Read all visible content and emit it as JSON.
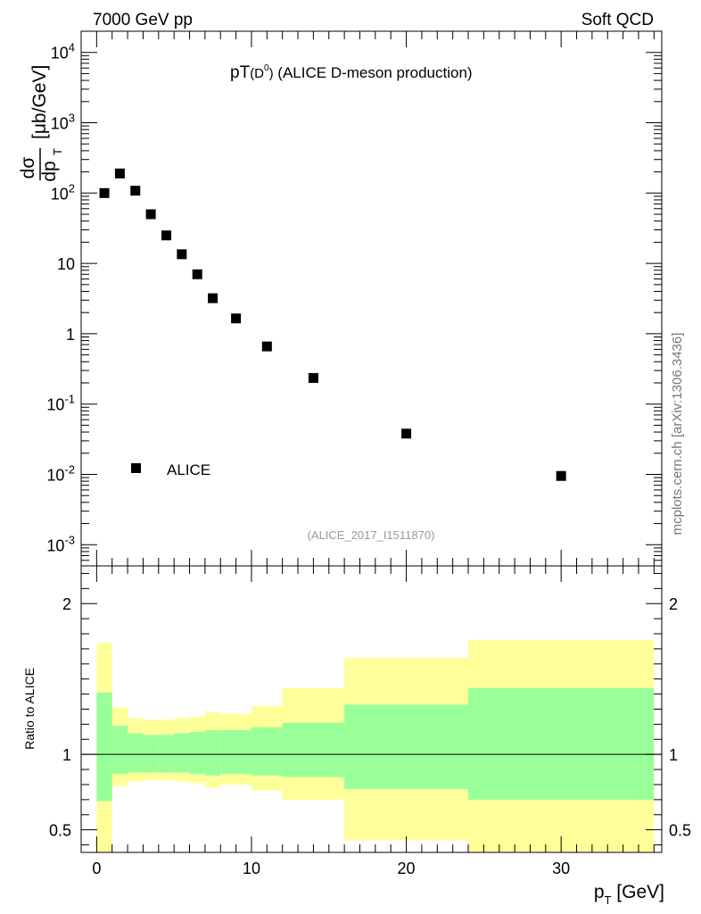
{
  "header": {
    "left": "7000 GeV pp",
    "right": "Soft QCD"
  },
  "plot_title": {
    "main": "pT",
    "sub": "(D",
    "sup": "0",
    "close": ")",
    "desc": " (ALICE D-meson production)"
  },
  "y_label": {
    "num": "dσ",
    "den": "dp",
    "den_sub": "T",
    "unit": "[μb/GeV]"
  },
  "legend": {
    "label": "ALICE"
  },
  "reference": "(ALICE_2017_I1511870)",
  "side_label": "mcplots.cern.ch [arXiv:1306.3436]",
  "ratio_label": "Ratio to ALICE",
  "x_label": {
    "main": "p",
    "sub": "T",
    "unit": " [GeV]"
  },
  "colors": {
    "marker": "#000000",
    "band_outer": "#ffff99",
    "band_inner": "#99ff99"
  },
  "chart_data": [
    {
      "type": "scatter",
      "panel": "main",
      "yscale": "log",
      "xlim": [
        -1,
        36.5
      ],
      "ylim": [
        0.0005,
        20000
      ],
      "y_tick_labels": [
        "10^-3",
        "10^-2",
        "10^-1",
        "1",
        "10",
        "10^2",
        "10^3",
        "10^4"
      ],
      "series": [
        {
          "name": "ALICE",
          "x": [
            0.5,
            1.5,
            2.5,
            3.5,
            4.5,
            5.5,
            6.5,
            7.5,
            9,
            11,
            14,
            20,
            30
          ],
          "y": [
            100,
            190,
            108,
            50,
            25,
            13.5,
            7,
            3.2,
            1.65,
            0.66,
            0.235,
            0.038,
            0.0095
          ]
        }
      ],
      "legend_position": "bottom-left"
    },
    {
      "type": "area",
      "panel": "ratio",
      "xlim": [
        -1,
        36.5
      ],
      "ylim": [
        0.35,
        2.25
      ],
      "x_ticks": [
        0,
        10,
        20,
        30
      ],
      "y_ticks": [
        0.5,
        1,
        2
      ],
      "reference_line": 1,
      "bins": [
        {
          "lo": 0,
          "hi": 1,
          "inner": [
            0.69,
            1.41
          ],
          "outer": [
            0.3,
            1.74
          ]
        },
        {
          "lo": 1,
          "hi": 2,
          "inner": [
            0.87,
            1.19
          ],
          "outer": [
            0.79,
            1.31
          ]
        },
        {
          "lo": 2,
          "hi": 3,
          "inner": [
            0.88,
            1.14
          ],
          "outer": [
            0.82,
            1.24
          ]
        },
        {
          "lo": 3,
          "hi": 4,
          "inner": [
            0.88,
            1.13
          ],
          "outer": [
            0.83,
            1.23
          ]
        },
        {
          "lo": 4,
          "hi": 5,
          "inner": [
            0.88,
            1.13
          ],
          "outer": [
            0.83,
            1.23
          ]
        },
        {
          "lo": 5,
          "hi": 6,
          "inner": [
            0.88,
            1.14
          ],
          "outer": [
            0.82,
            1.24
          ]
        },
        {
          "lo": 6,
          "hi": 7,
          "inner": [
            0.87,
            1.15
          ],
          "outer": [
            0.81,
            1.25
          ]
        },
        {
          "lo": 7,
          "hi": 8,
          "inner": [
            0.86,
            1.16
          ],
          "outer": [
            0.78,
            1.28
          ]
        },
        {
          "lo": 8,
          "hi": 10,
          "inner": [
            0.87,
            1.16
          ],
          "outer": [
            0.8,
            1.27
          ]
        },
        {
          "lo": 10,
          "hi": 12,
          "inner": [
            0.86,
            1.18
          ],
          "outer": [
            0.76,
            1.32
          ]
        },
        {
          "lo": 12,
          "hi": 16,
          "inner": [
            0.85,
            1.21
          ],
          "outer": [
            0.7,
            1.44
          ]
        },
        {
          "lo": 16,
          "hi": 24,
          "inner": [
            0.77,
            1.33
          ],
          "outer": [
            0.43,
            1.64
          ]
        },
        {
          "lo": 24,
          "hi": 36,
          "inner": [
            0.7,
            1.44
          ],
          "outer": [
            0.3,
            1.76
          ]
        }
      ]
    }
  ]
}
